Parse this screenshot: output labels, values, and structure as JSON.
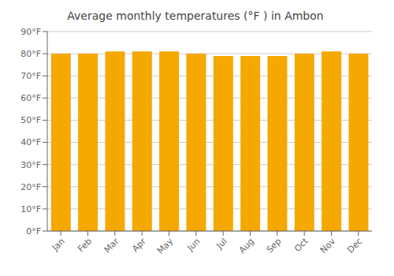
{
  "chart_data": {
    "type": "bar",
    "title": "Average monthly temperatures (°F ) in Ambon",
    "categories": [
      "Jan",
      "Feb",
      "Mar",
      "Apr",
      "May",
      "Jun",
      "Jul",
      "Aug",
      "Sep",
      "Oct",
      "Nov",
      "Dec"
    ],
    "values": [
      80,
      80,
      81,
      81,
      81,
      80,
      79,
      79,
      79,
      80,
      81,
      80
    ],
    "color": "#F5A800",
    "ylim": [
      0,
      90
    ],
    "yticks": [
      {
        "value": 0,
        "label": "0°F"
      },
      {
        "value": 10,
        "label": "10°F"
      },
      {
        "value": 20,
        "label": "20°F"
      },
      {
        "value": 30,
        "label": "30°F"
      },
      {
        "value": 40,
        "label": "40°F"
      },
      {
        "value": 50,
        "label": "50°F"
      },
      {
        "value": 60,
        "label": "60°F"
      },
      {
        "value": 70,
        "label": "70°F"
      },
      {
        "value": 80,
        "label": "80°F"
      },
      {
        "value": 90,
        "label": "90°F"
      }
    ],
    "grid": true
  }
}
